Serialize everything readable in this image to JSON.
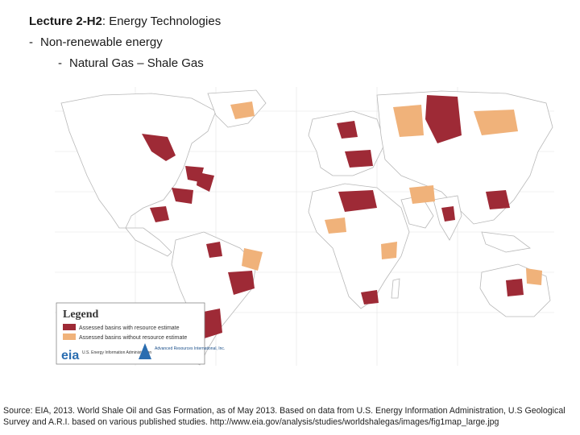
{
  "header": {
    "course": "Lecture 2-H2",
    "topic": ": Energy Technologies",
    "bullet1": "Non-renewable energy",
    "bullet2": "Natural Gas – Shale Gas",
    "bullet_marker": "-"
  },
  "map": {
    "colors": {
      "ocean": "#ffffff",
      "land": "#ffffff",
      "border": "#c9c9c9",
      "gridline": "#dcdcdc",
      "assessed": "#9e2a36",
      "unassessed": "#f0b27a"
    },
    "legend": {
      "title": "Legend",
      "items": [
        {
          "label": "Assessed basins with resource estimate",
          "color": "#9e2a36"
        },
        {
          "label": "Assessed basins without resource estimate",
          "color": "#f0b27a"
        }
      ]
    },
    "logos": {
      "eia_text": "eia",
      "eia_org": "U.S. Energy Information Administration",
      "ari_org": "Advanced Resources International, Inc."
    }
  },
  "source": "Source: EIA, 2013. World Shale Oil and Gas Formation, as of May 2013. Based on data from U.S. Energy Information Administration, U.S Geological Survey and A.R.I. based on various published studies. http://www.eia.gov/analysis/studies/worldshalegas/images/fig1map_large.jpg"
}
